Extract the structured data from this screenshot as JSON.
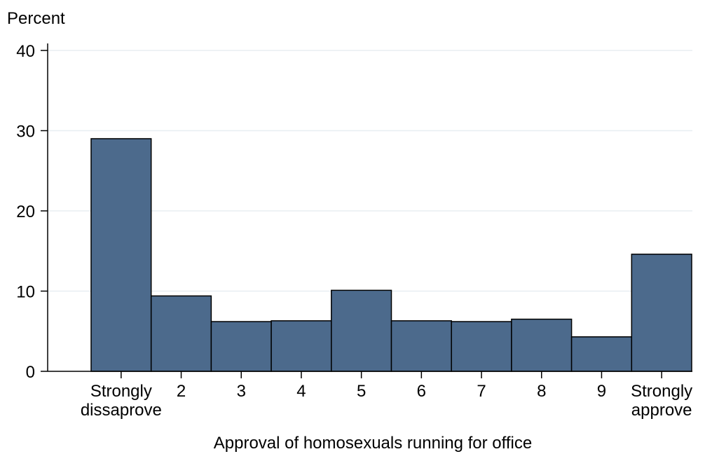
{
  "chart_data": {
    "type": "bar",
    "title": "",
    "ylabel": "Percent",
    "xlabel": "Approval of homosexuals running for office",
    "ylim": [
      0,
      40
    ],
    "yticks": [
      0,
      10,
      20,
      30,
      40
    ],
    "grid": true,
    "bar_color": "#4c6a8c",
    "categories": [
      [
        "Strongly",
        "dissaprove"
      ],
      [
        "2"
      ],
      [
        "3"
      ],
      [
        "4"
      ],
      [
        "5"
      ],
      [
        "6"
      ],
      [
        "7"
      ],
      [
        "8"
      ],
      [
        "9"
      ],
      [
        "Strongly",
        "approve"
      ]
    ],
    "values": [
      29.0,
      9.4,
      6.2,
      6.3,
      10.1,
      6.3,
      6.2,
      6.5,
      4.3,
      14.6
    ]
  }
}
